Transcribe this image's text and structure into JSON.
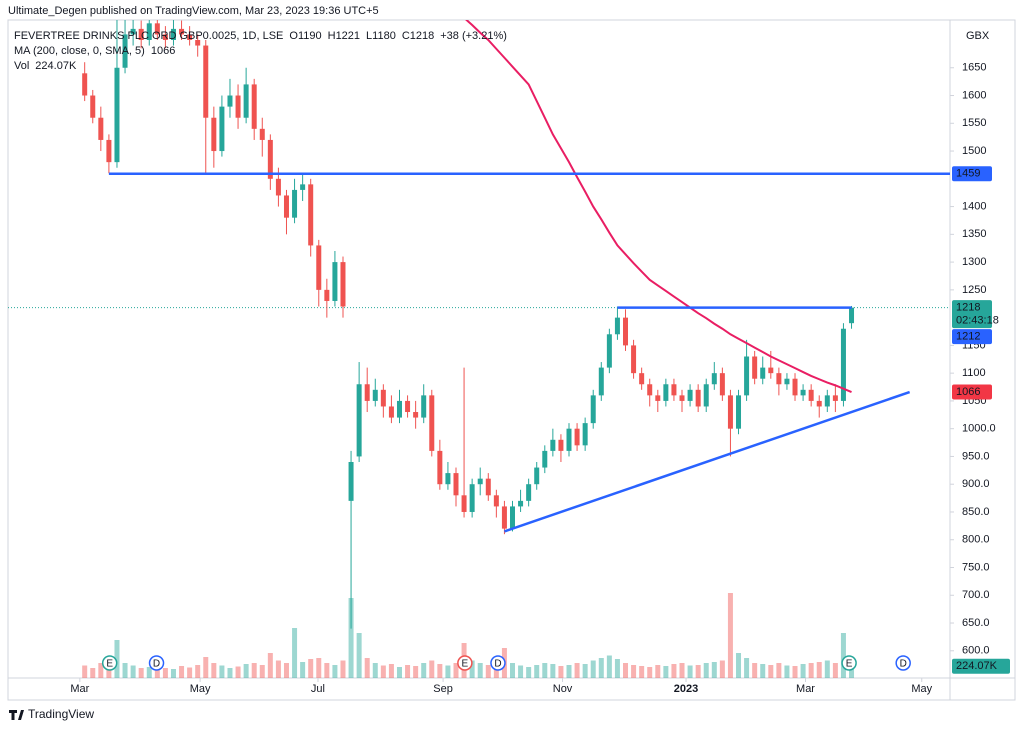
{
  "chart_data": {
    "type": "candlestick",
    "title": "Ultimate_Degen published on TradingView.com, Mar 23, 2023 19:36 UTC+5",
    "symbol": "FEVERTREE DRINKS PLC ORD GBP0.0025, 1D, LSE",
    "ohlc_labels": [
      "O1190",
      "H1221",
      "L1180",
      "C1218"
    ],
    "change": "+38 (+3.21%)",
    "y_unit": "GBX",
    "countdown": "02:43:18",
    "footer": "TradingView",
    "ylim": [
      551,
      1736
    ],
    "xlim": [
      -9.5,
      107.2
    ],
    "grid": false,
    "yticks": [
      1650,
      1600,
      1550,
      1500,
      1400,
      1350,
      1300,
      1250,
      1150,
      1100,
      1050,
      {
        "value": 1000,
        "label": "1000.0"
      },
      {
        "value": 950,
        "label": "950.0"
      },
      {
        "value": 900,
        "label": "900.0"
      },
      {
        "value": 850,
        "label": "850.0"
      },
      {
        "value": 800,
        "label": "800.0"
      },
      {
        "value": 750,
        "label": "750.0"
      },
      {
        "value": 700,
        "label": "700.0"
      },
      {
        "value": 650,
        "label": "650.0"
      },
      {
        "value": 600,
        "label": "600.0"
      }
    ],
    "xticks": [
      {
        "value": -0.6,
        "label": "Mar"
      },
      {
        "value": 14.3,
        "label": "May"
      },
      {
        "value": 28.9,
        "label": "Jul"
      },
      {
        "value": 44.4,
        "label": "Sep"
      },
      {
        "value": 59.2,
        "label": "Nov"
      },
      {
        "value": 74.5,
        "label": "2023"
      },
      {
        "value": 89.3,
        "label": "Mar"
      },
      {
        "value": 103.7,
        "label": "May"
      }
    ],
    "series": [
      {
        "name": "FEVERTREE DRINKS PLC ORD GBP0.0025",
        "up_color": "#26a69a",
        "down_color": "#ef5350",
        "ohlc": [
          [
            1640,
            1660,
            1590,
            1600
          ],
          [
            1600,
            1610,
            1550,
            1560
          ],
          [
            1560,
            1580,
            1500,
            1520
          ],
          [
            1520,
            1530,
            1460,
            1480
          ],
          [
            1480,
            1740,
            1470,
            1650
          ],
          [
            1650,
            1740,
            1640,
            1710
          ],
          [
            1710,
            1740,
            1690,
            1720
          ],
          [
            1720,
            1735,
            1685,
            1700
          ],
          [
            1700,
            1740,
            1690,
            1730
          ],
          [
            1730,
            1740,
            1700,
            1710
          ],
          [
            1710,
            1725,
            1685,
            1700
          ],
          [
            1700,
            1740,
            1690,
            1720
          ],
          [
            1720,
            1735,
            1700,
            1710
          ],
          [
            1710,
            1725,
            1690,
            1700
          ],
          [
            1700,
            1710,
            1670,
            1690
          ],
          [
            1690,
            1700,
            1460,
            1560
          ],
          [
            1560,
            1580,
            1470,
            1500
          ],
          [
            1500,
            1600,
            1490,
            1580
          ],
          [
            1580,
            1630,
            1560,
            1600
          ],
          [
            1600,
            1620,
            1540,
            1560
          ],
          [
            1560,
            1650,
            1550,
            1620
          ],
          [
            1620,
            1630,
            1520,
            1540
          ],
          [
            1540,
            1560,
            1490,
            1520
          ],
          [
            1520,
            1530,
            1430,
            1450
          ],
          [
            1450,
            1470,
            1400,
            1420
          ],
          [
            1420,
            1430,
            1350,
            1380
          ],
          [
            1380,
            1450,
            1370,
            1430
          ],
          [
            1430,
            1460,
            1410,
            1440
          ],
          [
            1440,
            1450,
            1310,
            1330
          ],
          [
            1330,
            1340,
            1220,
            1250
          ],
          [
            1250,
            1270,
            1200,
            1230
          ],
          [
            1230,
            1320,
            1220,
            1300
          ],
          [
            1300,
            1310,
            1200,
            1220
          ],
          [
            870,
            960,
            640,
            940
          ],
          [
            950,
            1120,
            940,
            1080
          ],
          [
            1080,
            1110,
            1030,
            1050
          ],
          [
            1050,
            1090,
            1040,
            1070
          ],
          [
            1070,
            1080,
            1020,
            1040
          ],
          [
            1040,
            1060,
            1010,
            1020
          ],
          [
            1020,
            1070,
            1010,
            1050
          ],
          [
            1050,
            1060,
            1020,
            1030
          ],
          [
            1030,
            1050,
            1000,
            1020
          ],
          [
            1020,
            1080,
            1010,
            1060
          ],
          [
            1060,
            1070,
            950,
            960
          ],
          [
            960,
            980,
            890,
            900
          ],
          [
            900,
            940,
            890,
            920
          ],
          [
            920,
            930,
            860,
            880
          ],
          [
            880,
            1110,
            840,
            850
          ],
          [
            850,
            910,
            840,
            900
          ],
          [
            900,
            930,
            880,
            910
          ],
          [
            910,
            920,
            870,
            880
          ],
          [
            880,
            890,
            840,
            860
          ],
          [
            860,
            870,
            810,
            820
          ],
          [
            820,
            870,
            815,
            860
          ],
          [
            860,
            890,
            850,
            870
          ],
          [
            870,
            910,
            860,
            900
          ],
          [
            900,
            940,
            890,
            930
          ],
          [
            930,
            970,
            920,
            960
          ],
          [
            960,
            1000,
            950,
            980
          ],
          [
            980,
            990,
            940,
            960
          ],
          [
            960,
            1010,
            950,
            1000
          ],
          [
            1000,
            1010,
            960,
            970
          ],
          [
            970,
            1020,
            960,
            1010
          ],
          [
            1010,
            1070,
            1000,
            1060
          ],
          [
            1060,
            1120,
            1050,
            1110
          ],
          [
            1110,
            1180,
            1100,
            1170
          ],
          [
            1170,
            1220,
            1160,
            1200
          ],
          [
            1200,
            1215,
            1140,
            1150
          ],
          [
            1150,
            1160,
            1090,
            1100
          ],
          [
            1100,
            1110,
            1070,
            1080
          ],
          [
            1080,
            1090,
            1040,
            1060
          ],
          [
            1060,
            1070,
            1030,
            1050
          ],
          [
            1050,
            1090,
            1040,
            1080
          ],
          [
            1080,
            1090,
            1050,
            1060
          ],
          [
            1060,
            1070,
            1030,
            1050
          ],
          [
            1050,
            1080,
            1040,
            1070
          ],
          [
            1070,
            1080,
            1030,
            1040
          ],
          [
            1040,
            1090,
            1030,
            1080
          ],
          [
            1080,
            1120,
            1070,
            1100
          ],
          [
            1100,
            1110,
            1050,
            1060
          ],
          [
            1060,
            1070,
            950,
            1000
          ],
          [
            1000,
            1070,
            990,
            1060
          ],
          [
            1060,
            1160,
            1050,
            1130
          ],
          [
            1130,
            1140,
            1080,
            1090
          ],
          [
            1090,
            1130,
            1080,
            1110
          ],
          [
            1110,
            1140,
            1090,
            1100
          ],
          [
            1100,
            1110,
            1060,
            1080
          ],
          [
            1080,
            1100,
            1070,
            1090
          ],
          [
            1090,
            1100,
            1050,
            1060
          ],
          [
            1060,
            1080,
            1050,
            1070
          ],
          [
            1070,
            1080,
            1040,
            1050
          ],
          [
            1050,
            1060,
            1020,
            1040
          ],
          [
            1040,
            1070,
            1030,
            1060
          ],
          [
            1060,
            1080,
            1030,
            1050
          ],
          [
            1050,
            1190,
            1040,
            1180
          ],
          [
            1190,
            1221,
            1180,
            1218
          ]
        ]
      },
      {
        "name": "MA (200, close, 0, SMA, 5)",
        "color": "#e91e63",
        "values": [
          null,
          null,
          null,
          null,
          null,
          null,
          null,
          null,
          null,
          null,
          null,
          null,
          null,
          null,
          null,
          null,
          null,
          null,
          null,
          null,
          null,
          null,
          null,
          null,
          null,
          null,
          null,
          null,
          null,
          null,
          null,
          null,
          null,
          null,
          null,
          null,
          null,
          null,
          null,
          null,
          null,
          null,
          null,
          null,
          null,
          null,
          null,
          1740,
          1727,
          1713,
          1700,
          1684,
          1668,
          1652,
          1636,
          1620,
          1590,
          1560,
          1530,
          1505,
          1480,
          1453,
          1427,
          1400,
          1377,
          1353,
          1330,
          1314,
          1298,
          1283,
          1268,
          1258,
          1248,
          1238,
          1228,
          1218,
          1208,
          1199,
          1189,
          1180,
          1170,
          1162,
          1154,
          1146,
          1138,
          1130,
          1123,
          1116,
          1109,
          1102,
          1095,
          1089,
          1083,
          1078,
          1072,
          1066
        ]
      },
      {
        "name": "Vol",
        "last_value_label": "224.07K",
        "values": [
          250,
          200,
          300,
          350,
          760,
          300,
          250,
          200,
          220,
          260,
          200,
          180,
          240,
          210,
          260,
          420,
          300,
          250,
          200,
          230,
          280,
          300,
          260,
          500,
          350,
          300,
          1000,
          320,
          380,
          400,
          300,
          260,
          350,
          1600,
          900,
          400,
          300,
          250,
          280,
          220,
          260,
          240,
          300,
          350,
          280,
          250,
          300,
          700,
          350,
          300,
          260,
          280,
          600,
          300,
          250,
          220,
          260,
          300,
          280,
          240,
          260,
          300,
          280,
          350,
          400,
          450,
          380,
          300,
          260,
          240,
          220,
          260,
          240,
          280,
          300,
          250,
          260,
          300,
          320,
          350,
          1700,
          500,
          400,
          300,
          280,
          260,
          300,
          250,
          240,
          280,
          300,
          320,
          350,
          300,
          900,
          224.07
        ]
      }
    ],
    "lines": [
      {
        "x": [
          3,
          107.2
        ],
        "y": [
          1459,
          1459
        ],
        "color": "#2962ff"
      },
      {
        "x": [
          52,
          102.2
        ],
        "y": [
          815,
          1066
        ],
        "color": "#2962ff"
      },
      {
        "x": [
          66,
          95
        ],
        "y": [
          1218,
          1218
        ],
        "color": "#2962ff"
      }
    ],
    "extra_price_labels": [
      {
        "value": 1212,
        "color": "#2962ff"
      }
    ],
    "events": [
      {
        "letter": "E",
        "x": 3.1,
        "color": "#26a69a"
      },
      {
        "letter": "D",
        "x": 8.9,
        "color": "#2962ff"
      },
      {
        "letter": "E",
        "x": 47.1,
        "color": "#ef5350"
      },
      {
        "letter": "D",
        "x": 51.2,
        "color": "#2962ff"
      },
      {
        "letter": "E",
        "x": 94.7,
        "color": "#26a69a"
      },
      {
        "letter": "D",
        "x": 101.4,
        "color": "#2962ff"
      }
    ]
  }
}
